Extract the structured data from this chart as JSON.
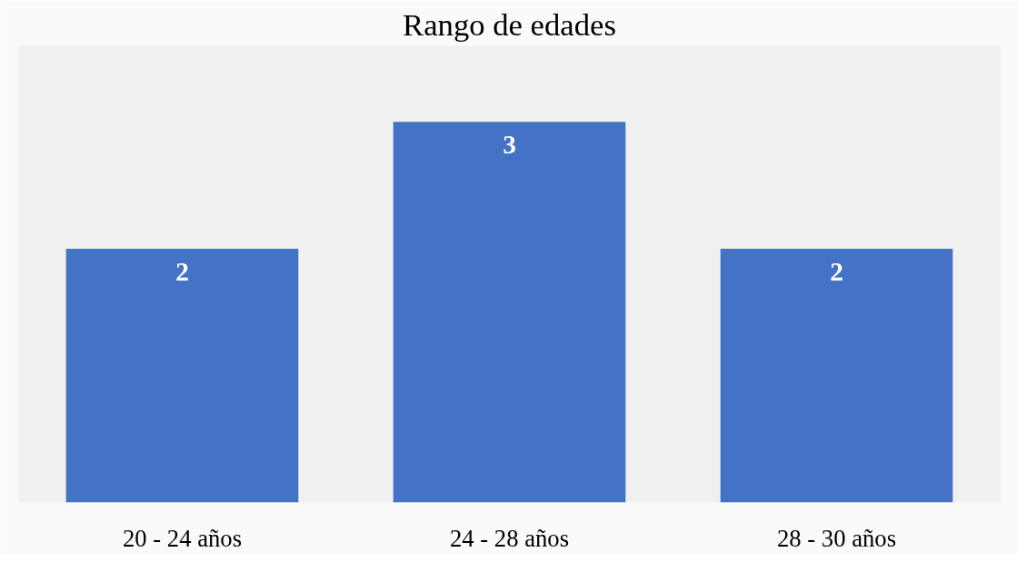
{
  "chart_data": {
    "type": "bar",
    "title": "Rango de edades",
    "categories": [
      "20 - 24 años",
      "24 - 28 años",
      "28 - 30 años"
    ],
    "values": [
      2,
      3,
      2
    ],
    "color": "#4472c4",
    "data_labels": true
  }
}
